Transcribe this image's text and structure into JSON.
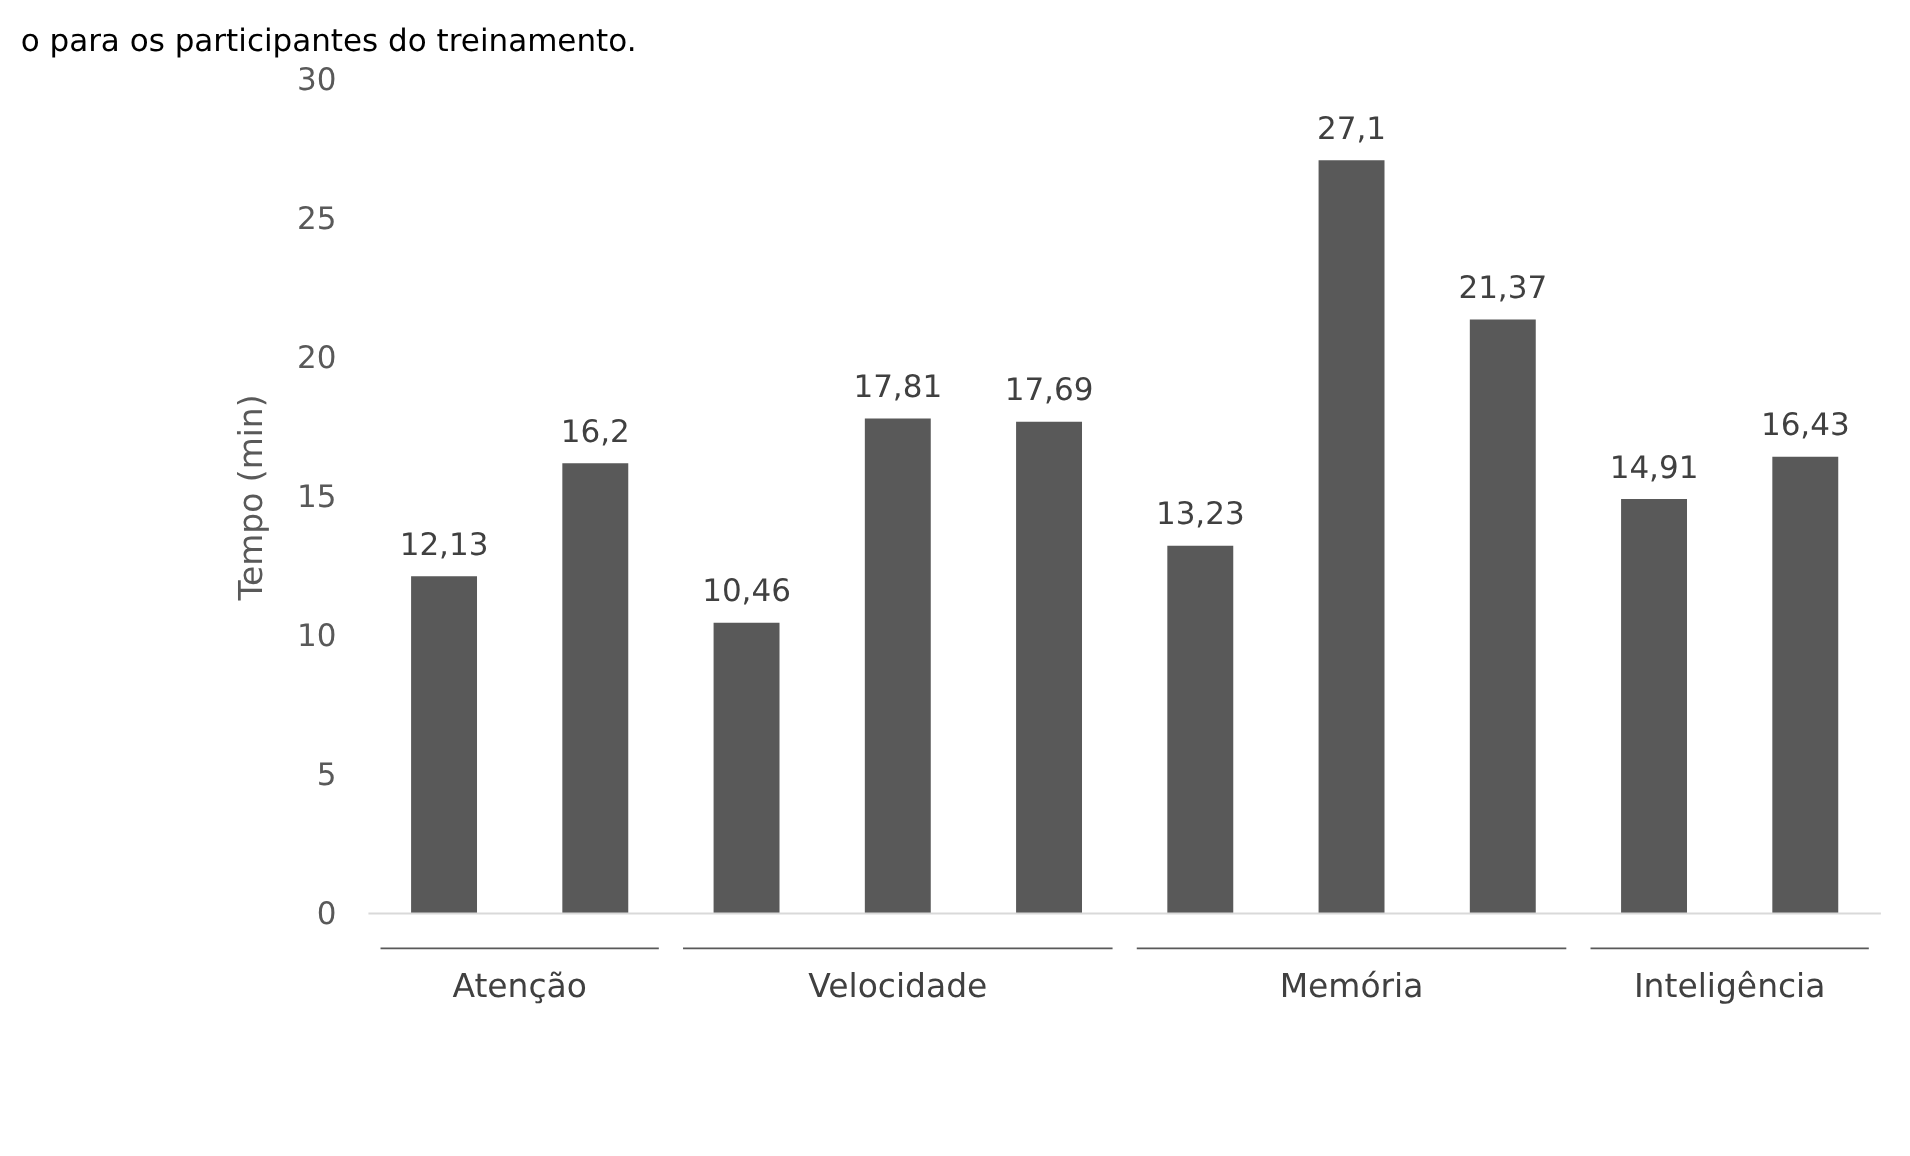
{
  "chart_data": {
    "type": "bar",
    "title": "o para os participantes do treinamento.",
    "ylabel": "Tempo (min)",
    "categories": [
      null,
      null,
      null,
      null,
      null,
      null,
      null,
      null,
      null,
      null
    ],
    "series": [
      {
        "name": "Atenção",
        "color": "#595959",
        "values": [
          12.13,
          16.2,
          null,
          null,
          null,
          null,
          null,
          null,
          null,
          null
        ],
        "value_labels": [
          "12,13",
          "16,2",
          null,
          null,
          null,
          null,
          null,
          null,
          null,
          null
        ]
      },
      {
        "name": "Velocidade",
        "color": "#595959",
        "values": [
          null,
          null,
          10.46,
          17.81,
          17.69,
          null,
          null,
          null,
          null,
          null
        ],
        "value_labels": [
          null,
          null,
          "10,46",
          "17,81",
          "17,69",
          null,
          null,
          null,
          null,
          null
        ]
      },
      {
        "name": "Memória",
        "color": "#595959",
        "values": [
          null,
          null,
          null,
          null,
          null,
          13.23,
          27.1,
          21.37,
          null,
          null
        ],
        "value_labels": [
          null,
          null,
          null,
          null,
          null,
          "13,23",
          "27,1",
          "21,37",
          null,
          null
        ]
      },
      {
        "name": "Inteligência",
        "color": "#595959",
        "values": [
          null,
          null,
          null,
          null,
          null,
          null,
          null,
          null,
          14.91,
          16.43
        ],
        "value_labels": [
          null,
          null,
          null,
          null,
          null,
          null,
          null,
          null,
          "14,91",
          "16,43"
        ]
      }
    ],
    "ylim": [
      0,
      30
    ],
    "yticks": [
      0,
      5,
      10,
      15,
      20,
      25,
      30
    ],
    "grid": false
  }
}
